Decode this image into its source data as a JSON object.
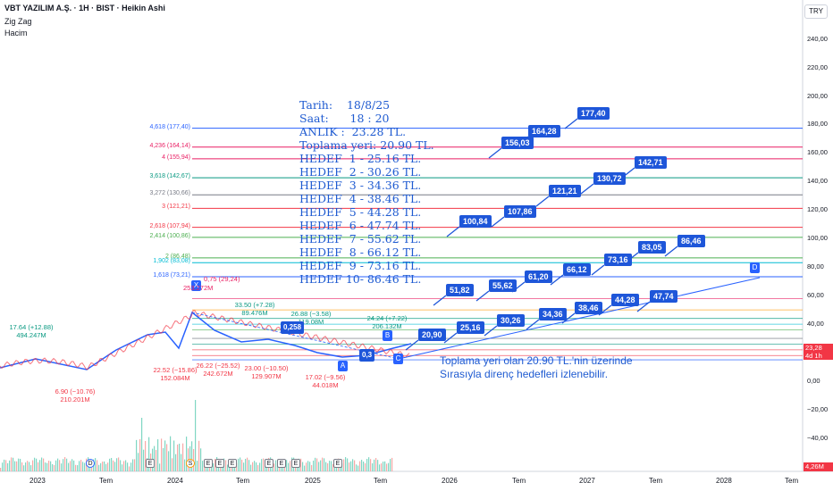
{
  "header": {
    "title": "VBT YAZILIM A.Ş. · 1H · BIST · Heikin Ashi",
    "indicator1": "Zig Zag",
    "indicator2": "Hacim",
    "currency": "TRY"
  },
  "note_lines": [
    "Tarih:    18/8/25",
    "Saat:      18 : 20",
    "ANLIK :  23.28 TL.",
    "Toplama yeri: 20.90 TL.",
    "HEDEF  1 - 25.16 TL.",
    "HEDEF  2 - 30.26 TL.",
    "HEDEF  3 - 34.36 TL.",
    "HEDEF  4 - 38.46 TL.",
    "HEDEF  5 - 44.28 TL.",
    "HEDEF  6 - 47.74 TL.",
    "HEDEF  7 - 55.62 TL.",
    "HEDEF  8 - 66.12 TL.",
    "HEDEF  9 - 73.16 TL.",
    "HEDEF 10- 86.46 TL."
  ],
  "note_bottom": [
    "Toplama yeri olan 20.90 TL.'nin üzerinde",
    "Sırasıyla direnç hedefleri izlenebilir."
  ],
  "chart_data": {
    "type": "line",
    "title": "VBT YAZILIM A.Ş. · 1H · BIST · Heikin Ashi",
    "y_ticks": [
      "240,00",
      "220,00",
      "200,00",
      "180,00",
      "160,00",
      "140,00",
      "120,00",
      "100,00",
      "80,00",
      "60,00",
      "40,00",
      "20,00",
      "0,00",
      "−20,00",
      "−40,00"
    ],
    "y_values": [
      240,
      220,
      200,
      180,
      160,
      140,
      120,
      100,
      80,
      60,
      40,
      20,
      0,
      -20,
      -40
    ],
    "x_ticks": [
      "2023",
      "Tem",
      "2024",
      "Tem",
      "2025",
      "Tem",
      "2026",
      "Tem",
      "2027",
      "Tem",
      "2028",
      "Tem"
    ],
    "last_price": "23,28",
    "last_price_sub": "4d 1h",
    "volume_tag": "4,26M",
    "fib_levels": [
      {
        "label": "4,618 (177,40)",
        "value": 177.4,
        "color": "#2962ff"
      },
      {
        "label": "4,236 (164,14)",
        "value": 164.14,
        "color": "#e91e63"
      },
      {
        "label": "4 (155,94)",
        "value": 155.94,
        "color": "#e91e63"
      },
      {
        "label": "3,618 (142,67)",
        "value": 142.67,
        "color": "#089981"
      },
      {
        "label": "3,272 (130,66)",
        "value": 130.66,
        "color": "#787b86"
      },
      {
        "label": "3 (121,21)",
        "value": 121.21,
        "color": "#f23645"
      },
      {
        "label": "2,618 (107,94)",
        "value": 107.94,
        "color": "#f23645"
      },
      {
        "label": "2,414 (100,86)",
        "value": 100.86,
        "color": "#4caf50"
      },
      {
        "label": "2 (86,48)",
        "value": 86.48,
        "color": "#4caf50"
      },
      {
        "label": "1,902 (83,08)",
        "value": 83.08,
        "color": "#00bcd4"
      },
      {
        "label": "1,618 (73,21)",
        "value": 73.21,
        "color": "#2962ff"
      }
    ],
    "targets_upper": [
      "100,84",
      "107,86",
      "121,21",
      "130,72",
      "142,71",
      "156,03",
      "164,28",
      "177,40"
    ],
    "targets_mid": [
      "51,82",
      "55,62",
      "61,20",
      "66,12",
      "73,16",
      "83,05",
      "86,46"
    ],
    "targets_low": [
      "20,90",
      "25,16",
      "30,26",
      "34,36",
      "38,46",
      "44,28",
      "47,74"
    ],
    "pivot_labels": [
      {
        "text": "17.64 (+12.88)",
        "sub": "494.247M",
        "color": "#089981"
      },
      {
        "text": "6.90 (−10.76)",
        "sub": "210.201M",
        "color": "#f23645"
      },
      {
        "text": "22.52 (−15.86)",
        "sub": "152.084M",
        "color": "#f23645"
      },
      {
        "text": "26.22 (−25.52)",
        "sub": "242.672M",
        "color": "#f23645"
      },
      {
        "text": "23.00 (−10.50)",
        "sub": "129.907M",
        "color": "#f23645"
      },
      {
        "text": "17.02 (−9.56)",
        "sub": "44.018M",
        "color": "#f23645"
      },
      {
        "text": "33.50 (+7.28)",
        "sub": "89.476M",
        "color": "#089981"
      },
      {
        "text": "26.88 (−3.58)",
        "sub": "119.08M",
        "color": "#089981"
      },
      {
        "text": "24.24 (+7.22)",
        "sub": "206.132M",
        "color": "#089981"
      }
    ],
    "markers": [
      "X",
      "A",
      "B",
      "C",
      "D"
    ],
    "small_labels": [
      "0,258",
      "0,3",
      "0,75 (29,24)",
      "253.272M"
    ],
    "events": [
      "D",
      "E",
      "S",
      "E",
      "E",
      "E",
      "E",
      "E",
      "E",
      "E"
    ]
  }
}
